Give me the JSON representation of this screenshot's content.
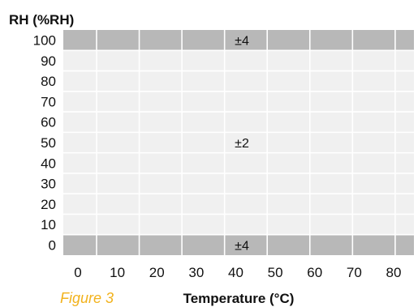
{
  "chart_data": {
    "type": "heatmap",
    "title": "",
    "ylabel": "RH (%RH)",
    "xlabel": "Temperature (°C)",
    "x_ticks": [
      "0",
      "10",
      "20",
      "30",
      "40",
      "50",
      "60",
      "70",
      "80"
    ],
    "y_ticks": [
      "100",
      "90",
      "80",
      "70",
      "60",
      "50",
      "40",
      "30",
      "20",
      "10",
      "0"
    ],
    "xlim": [
      0,
      80
    ],
    "ylim": [
      0,
      100
    ],
    "grid": true,
    "bands": [
      {
        "rh": [
          0,
          0
        ],
        "accuracy": "±4",
        "color": "#b8b8b8"
      },
      {
        "rh": [
          10,
          90
        ],
        "accuracy": "±2",
        "color": "#f0f0f0"
      },
      {
        "rh": [
          100,
          100
        ],
        "accuracy": "±4",
        "color": "#b8b8b8"
      }
    ]
  },
  "caption": "Figure 3",
  "colors": {
    "band_edge": "#b8b8b8",
    "band_mid": "#f0f0f0",
    "grid": "#ffffff",
    "caption": "#f2b21c"
  }
}
